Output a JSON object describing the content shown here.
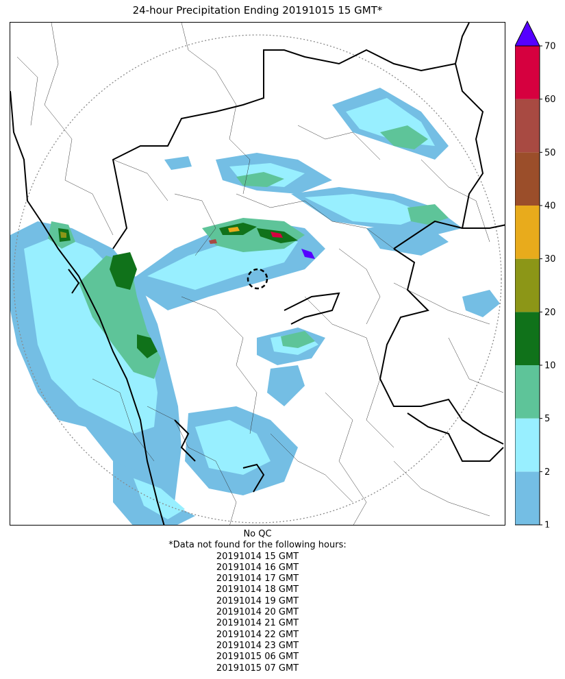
{
  "title": "24-hour Precipitation Ending 20191015 15 GMT*",
  "colorbar": {
    "tick_labels": [
      "1",
      "2",
      "5",
      "10",
      "20",
      "30",
      "40",
      "50",
      "60",
      "70"
    ],
    "bins": [
      {
        "from": 1,
        "to": 2,
        "color": "#74bee4"
      },
      {
        "from": 2,
        "to": 5,
        "color": "#98efff"
      },
      {
        "from": 5,
        "to": 10,
        "color": "#5ec499"
      },
      {
        "from": 10,
        "to": 20,
        "color": "#10721a"
      },
      {
        "from": 20,
        "to": 30,
        "color": "#8c9617"
      },
      {
        "from": 30,
        "to": 40,
        "color": "#e8ab1c"
      },
      {
        "from": 40,
        "to": 50,
        "color": "#9b4e2a"
      },
      {
        "from": 50,
        "to": 60,
        "color": "#a84a42"
      },
      {
        "from": 60,
        "to": 70,
        "color": "#d6003f"
      }
    ],
    "extend_color": "#5500ff"
  },
  "notes": {
    "qc": "No QC",
    "missing_header": "*Data not found for the following hours:",
    "missing_hours": [
      "20191014 15 GMT",
      "20191014 16 GMT",
      "20191014 17 GMT",
      "20191014 18 GMT",
      "20191014 19 GMT",
      "20191014 20 GMT",
      "20191014 21 GMT",
      "20191014 22 GMT",
      "20191014 23 GMT",
      "20191015 06 GMT",
      "20191015 07 GMT"
    ]
  }
}
